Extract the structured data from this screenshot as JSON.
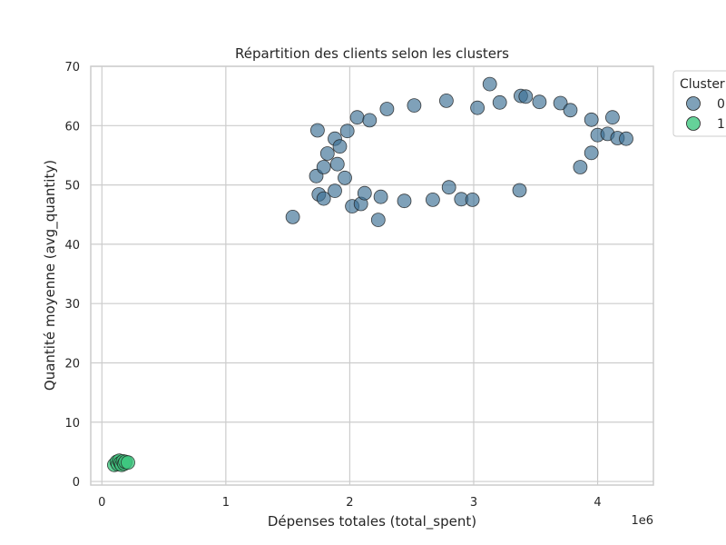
{
  "chart_data": {
    "type": "scatter",
    "title": "Répartition des clients selon les clusters",
    "xlabel": "Dépenses totales (total_spent)",
    "ylabel": "Quantité moyenne (avg_quantity)",
    "x_offset_label": "1e6",
    "xlim": [
      -0.09,
      4.45
    ],
    "ylim": [
      -0.6,
      70
    ],
    "x_ticks": [
      0,
      1,
      2,
      3,
      4
    ],
    "x_tick_labels": [
      "0",
      "1",
      "2",
      "3",
      "4"
    ],
    "y_ticks": [
      0,
      10,
      20,
      30,
      40,
      50,
      60,
      70
    ],
    "y_tick_labels": [
      "0",
      "10",
      "20",
      "30",
      "40",
      "50",
      "60",
      "70"
    ],
    "grid": true,
    "legend": {
      "title": "Cluster",
      "placement": "outside-top-right",
      "entries": [
        "0",
        "1"
      ]
    },
    "colors": {
      "cluster_0": "#3b6e94",
      "cluster_1": "#3ec77f",
      "edge": "#222222",
      "grid": "#cccccc",
      "axes": "#cccccc"
    },
    "series": [
      {
        "name": "0",
        "points": [
          [
            1.54,
            44.6
          ],
          [
            1.73,
            51.5
          ],
          [
            1.74,
            59.2
          ],
          [
            1.75,
            48.4
          ],
          [
            1.79,
            47.7
          ],
          [
            1.79,
            53.0
          ],
          [
            1.82,
            55.3
          ],
          [
            1.88,
            49.0
          ],
          [
            1.88,
            57.8
          ],
          [
            1.9,
            53.5
          ],
          [
            1.92,
            56.5
          ],
          [
            1.96,
            51.2
          ],
          [
            1.98,
            59.1
          ],
          [
            2.02,
            46.4
          ],
          [
            2.06,
            61.4
          ],
          [
            2.09,
            46.8
          ],
          [
            2.12,
            48.6
          ],
          [
            2.16,
            60.9
          ],
          [
            2.23,
            44.1
          ],
          [
            2.25,
            48.0
          ],
          [
            2.3,
            62.8
          ],
          [
            2.44,
            47.3
          ],
          [
            2.52,
            63.4
          ],
          [
            2.67,
            47.5
          ],
          [
            2.78,
            64.2
          ],
          [
            2.8,
            49.6
          ],
          [
            2.9,
            47.6
          ],
          [
            2.99,
            47.5
          ],
          [
            3.03,
            63.0
          ],
          [
            3.13,
            67.0
          ],
          [
            3.21,
            63.9
          ],
          [
            3.37,
            49.1
          ],
          [
            3.38,
            65.0
          ],
          [
            3.42,
            64.9
          ],
          [
            3.53,
            64.0
          ],
          [
            3.7,
            63.8
          ],
          [
            3.78,
            62.6
          ],
          [
            3.86,
            53.0
          ],
          [
            3.95,
            55.4
          ],
          [
            3.95,
            61.0
          ],
          [
            4.0,
            58.4
          ],
          [
            4.08,
            58.6
          ],
          [
            4.12,
            61.4
          ],
          [
            4.16,
            57.9
          ],
          [
            4.23,
            57.8
          ]
        ]
      },
      {
        "name": "1",
        "points": [
          [
            0.1,
            2.8
          ],
          [
            0.12,
            3.3
          ],
          [
            0.13,
            2.9
          ],
          [
            0.14,
            3.5
          ],
          [
            0.15,
            3.1
          ],
          [
            0.16,
            2.8
          ],
          [
            0.17,
            3.4
          ],
          [
            0.18,
            3.0
          ],
          [
            0.19,
            3.3
          ],
          [
            0.21,
            3.2
          ]
        ]
      }
    ]
  }
}
